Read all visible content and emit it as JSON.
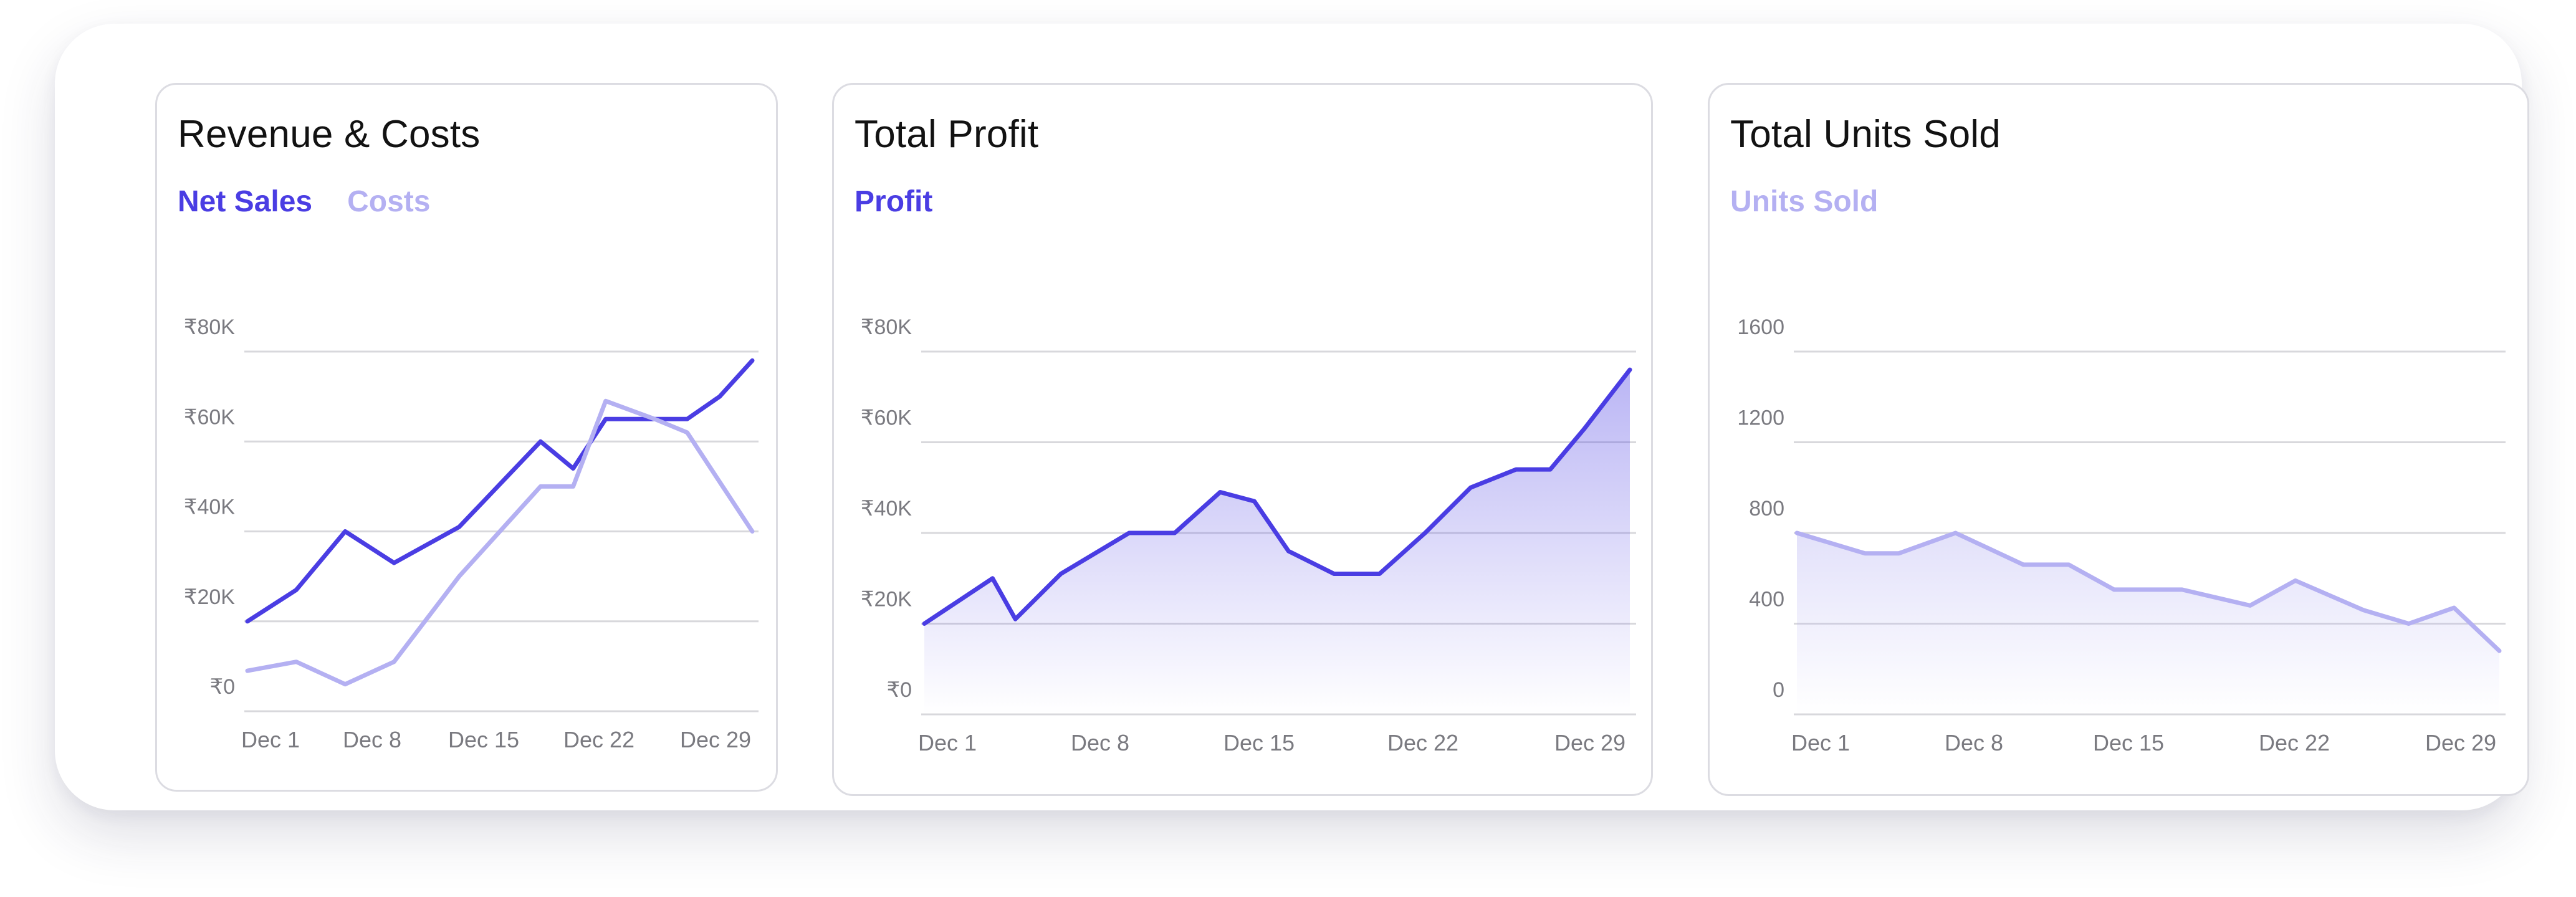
{
  "colors": {
    "primary": "#4a3de3",
    "secondary": "#b4b0f2",
    "grid": "#d8d8dc",
    "tick": "#7a7a80"
  },
  "cards": [
    {
      "title": "Revenue & Costs",
      "legend": [
        {
          "label": "Net Sales",
          "color": "#4a3de3"
        },
        {
          "label": "Costs",
          "color": "#b4b0f2"
        }
      ]
    },
    {
      "title": "Total Profit",
      "legend": [
        {
          "label": "Profit",
          "color": "#4a3de3"
        }
      ]
    },
    {
      "title": "Total Units Sold",
      "legend": [
        {
          "label": "Units Sold",
          "color": "#b4b0f2"
        }
      ]
    }
  ],
  "chart_data": [
    {
      "type": "line",
      "title": "Revenue & Costs",
      "xlabel": "",
      "ylabel": "",
      "ylim": [
        0,
        80000
      ],
      "x_ticks": [
        "Dec 1",
        "Dec 8",
        "Dec 15",
        "Dec 22",
        "Dec 29"
      ],
      "y_ticks": [
        "₹0",
        "₹20K",
        "₹40K",
        "₹60K",
        "₹80K"
      ],
      "y_tick_values": [
        0,
        20000,
        40000,
        60000,
        80000
      ],
      "grid": true,
      "series": [
        {
          "name": "Net Sales",
          "color": "#4a3de3",
          "x": [
            1,
            4,
            7,
            10,
            14,
            19,
            21,
            23,
            26,
            28,
            30,
            32
          ],
          "y": [
            20000,
            27000,
            40000,
            33000,
            41000,
            60000,
            54000,
            65000,
            65000,
            65000,
            70000,
            78000
          ]
        },
        {
          "name": "Costs",
          "color": "#b4b0f2",
          "x": [
            1,
            4,
            7,
            10,
            14,
            19,
            21,
            23,
            26,
            28,
            30,
            32
          ],
          "y": [
            9000,
            11000,
            6000,
            11000,
            30000,
            50000,
            50000,
            69000,
            65000,
            62000,
            51000,
            40000
          ]
        }
      ]
    },
    {
      "type": "area",
      "title": "Total Profit",
      "xlabel": "",
      "ylabel": "",
      "ylim": [
        0,
        80000
      ],
      "x_ticks": [
        "Dec 1",
        "Dec 8",
        "Dec 15",
        "Dec 22",
        "Dec 29"
      ],
      "y_ticks": [
        "₹0",
        "₹20K",
        "₹40K",
        "₹60K",
        "₹80K"
      ],
      "y_tick_values": [
        0,
        20000,
        40000,
        60000,
        80000
      ],
      "grid": true,
      "series": [
        {
          "name": "Profit",
          "color": "#4a3de3",
          "x": [
            1,
            4,
            5,
            7,
            10,
            12,
            14,
            15.5,
            17,
            19,
            21,
            23,
            25,
            27,
            28.5,
            30,
            32
          ],
          "y": [
            20000,
            30000,
            21000,
            31000,
            40000,
            40000,
            49000,
            47000,
            36000,
            31000,
            31000,
            40000,
            50000,
            54000,
            54000,
            63000,
            76000
          ]
        }
      ]
    },
    {
      "type": "area",
      "title": "Total Units Sold",
      "xlabel": "",
      "ylabel": "",
      "ylim": [
        0,
        1600
      ],
      "x_ticks": [
        "Dec 1",
        "Dec 8",
        "Dec 15",
        "Dec 22",
        "Dec 29"
      ],
      "y_ticks": [
        "0",
        "400",
        "800",
        "1200",
        "1600"
      ],
      "y_tick_values": [
        0,
        400,
        800,
        1200,
        1600
      ],
      "grid": true,
      "series": [
        {
          "name": "Units Sold",
          "color": "#b4b0f2",
          "x": [
            1,
            4,
            5.5,
            8,
            11,
            13,
            15,
            18,
            21,
            23,
            26,
            28,
            30,
            32
          ],
          "y": [
            800,
            710,
            710,
            800,
            660,
            660,
            550,
            550,
            480,
            590,
            460,
            400,
            470,
            280
          ]
        }
      ]
    }
  ]
}
